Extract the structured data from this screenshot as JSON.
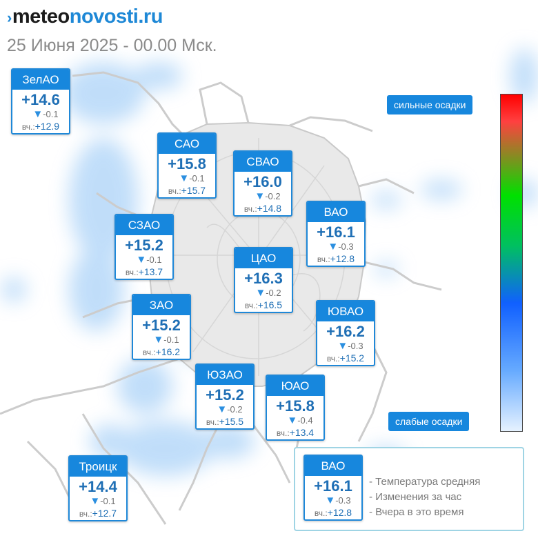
{
  "header": {
    "logo_mark": "›",
    "logo_part1": "meteo",
    "logo_part2": "novosti.ru",
    "date": "25 Июня 2025 - 00.00 Мск."
  },
  "colors": {
    "accent": "#1787dd",
    "temp_text": "#1f6fb5",
    "precip_blue": "#8ec3f5"
  },
  "districts": [
    {
      "name": "ЗелАО",
      "temp": "+14.6",
      "change": "-0.1",
      "yesterday_label": "вч.:",
      "yesterday": "+12.9"
    },
    {
      "name": "САО",
      "temp": "+15.8",
      "change": "-0.1",
      "yesterday_label": "вч.:",
      "yesterday": "+15.7"
    },
    {
      "name": "СВАО",
      "temp": "+16.0",
      "change": "-0.2",
      "yesterday_label": "вч.:",
      "yesterday": "+14.8"
    },
    {
      "name": "ВАО",
      "temp": "+16.1",
      "change": "-0.3",
      "yesterday_label": "вч.:",
      "yesterday": "+12.8"
    },
    {
      "name": "СЗАО",
      "temp": "+15.2",
      "change": "-0.1",
      "yesterday_label": "вч.:",
      "yesterday": "+13.7"
    },
    {
      "name": "ЦАО",
      "temp": "+16.3",
      "change": "-0.2",
      "yesterday_label": "вч.:",
      "yesterday": "+16.5"
    },
    {
      "name": "ЗАО",
      "temp": "+15.2",
      "change": "-0.1",
      "yesterday_label": "вч.:",
      "yesterday": "+16.2"
    },
    {
      "name": "ЮВАО",
      "temp": "+16.2",
      "change": "-0.3",
      "yesterday_label": "вч.:",
      "yesterday": "+15.2"
    },
    {
      "name": "ЮЗАО",
      "temp": "+15.2",
      "change": "-0.2",
      "yesterday_label": "вч.:",
      "yesterday": "+15.5"
    },
    {
      "name": "ЮАО",
      "temp": "+15.8",
      "change": "-0.4",
      "yesterday_label": "вч.:",
      "yesterday": "+13.4"
    },
    {
      "name": "Троицк",
      "temp": "+14.4",
      "change": "-0.1",
      "yesterday_label": "вч.:",
      "yesterday": "+12.7"
    }
  ],
  "scale": {
    "top_label": "сильные осадки",
    "bottom_label": "слабые осадки"
  },
  "legend": {
    "sample": {
      "name": "ВАО",
      "temp": "+16.1",
      "change": "-0.3",
      "yesterday_label": "вч.:",
      "yesterday": "+12.8"
    },
    "line1": "- Температура средняя",
    "line2": "- Изменения за час",
    "line3": "- Вчера в это время"
  }
}
